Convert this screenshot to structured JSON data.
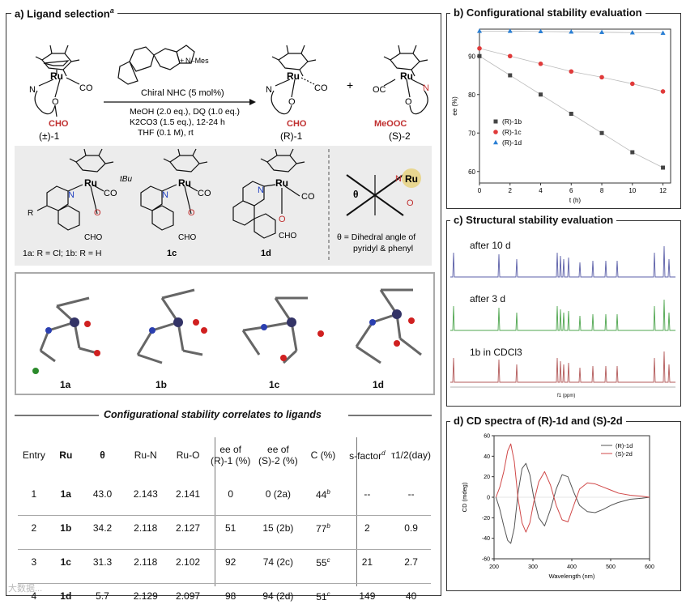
{
  "panel_a": {
    "title": "a) Ligand selection",
    "title_sup": "a",
    "reaction": {
      "start_label": "(±)-1",
      "product_r_label": "(R)-1",
      "product_s_label": "(S)-2",
      "plus": "+",
      "catalyst": "Chiral NHC (5 mol%)",
      "nhc_mes": "+ N–Mes",
      "cond1": "MeOH (2.0 eq.), DQ (1.0 eq.)",
      "cond2": "K2CO3 (1.5 eq.), 12-24 h",
      "cond3": "THF (0.1 M), rt",
      "atom_ru": "Ru",
      "atom_n": "N",
      "atom_o": "O",
      "co": "CO",
      "cho": "CHO",
      "meooc": "MeOOC",
      "oc": "OC"
    },
    "ligands": {
      "lab_1ab": "1a: R = Cl; 1b: R = H",
      "lab_1c": "1c",
      "lab_1d": "1d",
      "r_sub": "R",
      "tbu": "tBu",
      "theta_symbol": "θ",
      "theta_note_1": "θ = Dihedral angle of",
      "theta_note_2": "pyridyl & phenyl"
    },
    "crystals": [
      "1a",
      "1b",
      "1c",
      "1d"
    ],
    "table": {
      "caption": "Configurational stability correlates to ligands",
      "headers": {
        "entry": "Entry",
        "ru": "Ru",
        "theta": "θ",
        "run": "Ru-N",
        "ruo": "Ru-O",
        "ee1_l1": "ee of",
        "ee1_l2": "(R)-1 (%)",
        "ee2_l1": "ee of",
        "ee2_l2": "(S)-2 (%)",
        "c": "C (%)",
        "s": "s-factor",
        "s_sup": "d",
        "tau": "τ1/2(day)"
      },
      "rows": [
        {
          "entry": "1",
          "ru": "1a",
          "theta": "43.0",
          "run": "2.143",
          "ruo": "2.141",
          "ee1": "0",
          "ee2": "0 (2a)",
          "c": "44",
          "c_sup": "b",
          "s": "--",
          "tau": "--"
        },
        {
          "entry": "2",
          "ru": "1b",
          "theta": "34.2",
          "run": "2.118",
          "ruo": "2.127",
          "ee1": "51",
          "ee2": "15 (2b)",
          "c": "77",
          "c_sup": "b",
          "s": "2",
          "tau": "0.9"
        },
        {
          "entry": "3",
          "ru": "1c",
          "theta": "31.3",
          "run": "2.118",
          "ruo": "2.102",
          "ee1": "92",
          "ee2": "74 (2c)",
          "c": "55",
          "c_sup": "c",
          "s": "21",
          "tau": "2.7"
        },
        {
          "entry": "4",
          "ru": "1d",
          "theta": "5.7",
          "run": "2.129",
          "ruo": "2.097",
          "ee1": "98",
          "ee2": "94 (2d)",
          "c": "51",
          "c_sup": "c",
          "s": "149",
          "tau": "40"
        }
      ]
    },
    "watermark": "大数据..."
  },
  "panel_b": {
    "title": "b) Configurational stability evaluation",
    "chart_data": {
      "type": "scatter",
      "title": "Configurational stability evaluation",
      "xlabel": "t (h)",
      "ylabel": "ee (%)",
      "xlim": [
        0,
        12.5
      ],
      "ylim": [
        57,
        97
      ],
      "xticks": [
        0,
        2,
        4,
        6,
        8,
        10,
        12
      ],
      "yticks": [
        60,
        70,
        80,
        90
      ],
      "legend_position": "middle-left",
      "series": [
        {
          "name": "(R)-1b",
          "marker": "square",
          "color": "#444444",
          "x": [
            0,
            2,
            4,
            6,
            8,
            10,
            12
          ],
          "y": [
            90,
            85,
            80,
            75,
            70,
            65,
            61
          ]
        },
        {
          "name": "(R)-1c",
          "marker": "circle",
          "color": "#e03a3a",
          "x": [
            0,
            2,
            4,
            6,
            8,
            10,
            12
          ],
          "y": [
            92,
            90,
            88,
            86,
            84.5,
            82.8,
            80.8
          ]
        },
        {
          "name": "(R)-1d",
          "marker": "triangle",
          "color": "#2a7fd4",
          "x": [
            0,
            2,
            4,
            6,
            8,
            10,
            12
          ],
          "y": [
            96.5,
            96.5,
            96.4,
            96.3,
            96.2,
            96.1,
            96.0
          ]
        }
      ]
    }
  },
  "panel_c": {
    "title": "c) Structural stability evaluation",
    "traces": [
      {
        "label": "after 10 d",
        "color": "#5b5fa8"
      },
      {
        "label": "after 3 d",
        "color": "#4fa64f"
      },
      {
        "label": "1b in CDCl3",
        "color": "#b35a5a"
      }
    ],
    "axis_label": "f1 (ppm)"
  },
  "panel_d": {
    "title": "d) CD spectra of (R)-1d and (S)-2d",
    "chart_data": {
      "type": "line",
      "title": "CD spectra of (R)-1d and (S)-2d",
      "xlabel": "Wavelength (nm)",
      "ylabel": "CD (mdeg)",
      "xlim": [
        200,
        600
      ],
      "ylim": [
        -60,
        60
      ],
      "xticks": [
        200,
        300,
        400,
        500,
        600
      ],
      "yticks": [
        -60,
        -40,
        -20,
        0,
        20,
        40,
        60
      ],
      "legend_position": "top-right",
      "series": [
        {
          "name": "(R)-1d",
          "color": "#555555",
          "x": [
            205,
            215,
            225,
            235,
            243,
            252,
            262,
            272,
            282,
            292,
            302,
            315,
            330,
            345,
            360,
            375,
            390,
            405,
            420,
            440,
            460,
            480,
            500,
            520,
            550,
            580,
            600
          ],
          "y": [
            0,
            -12,
            -28,
            -42,
            -45,
            -30,
            5,
            28,
            33,
            22,
            0,
            -20,
            -28,
            -12,
            8,
            22,
            20,
            5,
            -8,
            -14,
            -15,
            -12,
            -8,
            -5,
            -2,
            -1,
            0
          ]
        },
        {
          "name": "(S)-2d",
          "color": "#d04848",
          "x": [
            205,
            215,
            225,
            235,
            243,
            252,
            262,
            272,
            282,
            292,
            302,
            315,
            330,
            345,
            360,
            375,
            390,
            405,
            420,
            440,
            460,
            480,
            500,
            520,
            550,
            580,
            600
          ],
          "y": [
            0,
            10,
            25,
            45,
            52,
            35,
            -2,
            -25,
            -34,
            -25,
            -5,
            15,
            25,
            12,
            -8,
            -22,
            -24,
            -8,
            8,
            14,
            13,
            10,
            7,
            4,
            2,
            1,
            0
          ]
        }
      ]
    }
  }
}
